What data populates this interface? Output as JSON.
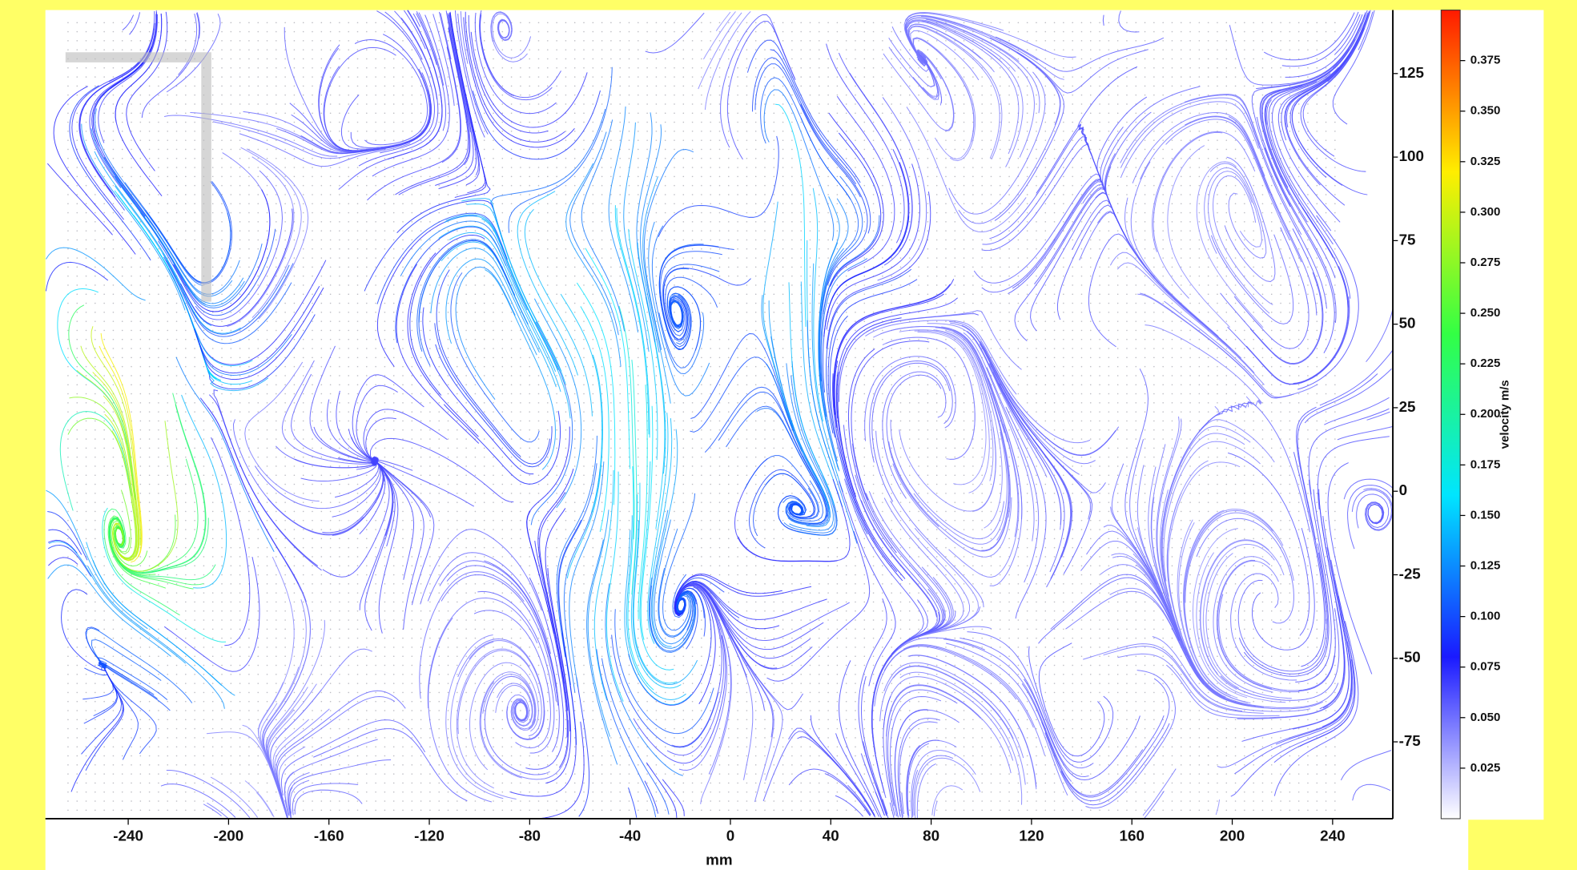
{
  "chart_data": {
    "type": "streamline",
    "x_label": "mm",
    "xlim": [
      -273,
      264
    ],
    "xticks": [
      -240,
      -200,
      -160,
      -120,
      -80,
      -40,
      0,
      40,
      80,
      120,
      160,
      200,
      240
    ],
    "ylim": [
      -98,
      144
    ],
    "yticks": [
      -75,
      -50,
      -25,
      0,
      25,
      50,
      75,
      100,
      125
    ],
    "colorbar": {
      "label": "velocity m/s",
      "lim": [
        0,
        0.4
      ],
      "ticks": [
        0.025,
        {
          "value": 0.05,
          "label": "0.050"
        },
        0.075,
        {
          "value": 0.1,
          "label": "0.100"
        },
        0.125,
        {
          "value": 0.15,
          "label": "0.150"
        },
        0.175,
        {
          "value": 0.2,
          "label": "0.200"
        },
        0.225,
        {
          "value": 0.25,
          "label": "0.250"
        },
        0.275,
        {
          "value": 0.3,
          "label": "0.300"
        },
        0.325,
        {
          "value": 0.35,
          "label": "0.350"
        },
        0.375
      ],
      "colors": [
        "#ffffff",
        "#1a1aff",
        "#00e5ff",
        "#33ff44",
        "#ffee00",
        "#ff1a00"
      ]
    }
  }
}
